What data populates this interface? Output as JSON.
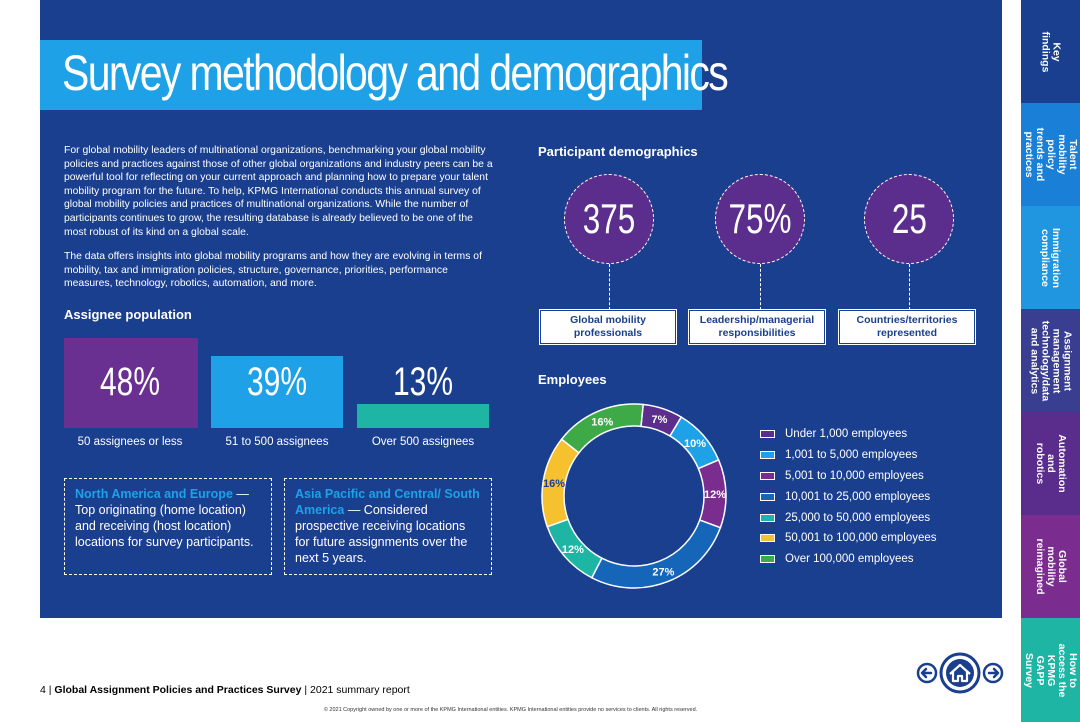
{
  "title": "Survey methodology and demographics",
  "intro": {
    "paragraph1": "For global mobility leaders of multinational organizations, benchmarking your global mobility policies and practices against those of other global organizations and industry peers can be a powerful tool for reflecting on your current approach and planning how to prepare your talent mobility program for the future. To help, KPMG International conducts this annual survey of global mobility policies and practices of multinational organizations. While the number of participants continues to grow, the resulting database is already believed to be one of the most robust of its kind on a global scale.",
    "paragraph2": "The data offers insights into global mobility programs and how they are evolving in terms of mobility, tax and immigration policies, structure, governance, priorities, performance measures, technology, robotics, automation, and more."
  },
  "assignee_population": {
    "heading": "Assignee population",
    "bars": [
      {
        "value": "48%",
        "label": "50 assignees or less",
        "color": "#6a3091"
      },
      {
        "value": "39%",
        "label": "51 to 500 assignees",
        "color": "#1ea1e6"
      },
      {
        "value": "13%",
        "label": "Over 500 assignees",
        "color": "#1fb5a5"
      }
    ]
  },
  "callouts": [
    {
      "highlight": "North America and Europe",
      "text": " — Top originating (home location) and receiving (host location) locations for survey participants."
    },
    {
      "highlight": "Asia Pacific and Central/ South America",
      "text": " — Considered prospective receiving locations for future assignments over the next 5 years."
    }
  ],
  "participant_demographics": {
    "heading": "Participant demographics",
    "items": [
      {
        "value": "375",
        "label": "Global mobility professionals"
      },
      {
        "value": "75%",
        "label": "Leadership/managerial responsibilities"
      },
      {
        "value": "25",
        "label": "Countries/territories represented"
      }
    ]
  },
  "employees": {
    "heading": "Employees"
  },
  "chart_data": {
    "type": "pie",
    "title": "Employees",
    "categories": [
      "Under 1,000 employees",
      "1,001 to 5,000 employees",
      "5,001 to 10,000 employees",
      "10,001 to 25,000 employees",
      "25,000 to 50,000 employees",
      "50,001 to 100,000 employees",
      "Over 100,000 employees"
    ],
    "values": [
      7,
      10,
      12,
      27,
      12,
      16,
      16
    ],
    "labels": [
      "7%",
      "10%",
      "12%",
      "27%",
      "12%",
      "16%",
      "16%"
    ],
    "colors": [
      "#5b2d8c",
      "#1ea1e6",
      "#7b2d8f",
      "#1565b8",
      "#1fb5a5",
      "#f5c12e",
      "#3daa47"
    ],
    "donut": true,
    "legend_position": "right"
  },
  "sidebar": {
    "tabs": [
      {
        "label": "Key findings",
        "color": "#1a3f8f"
      },
      {
        "label": "Talent mobility policy trends and practices",
        "color": "#1a7fd6"
      },
      {
        "label": "Immigration compliance",
        "color": "#2196e0"
      },
      {
        "label": "Assignment management technology/data and analytics",
        "color": "#3a3e90"
      },
      {
        "label": "Automation and robotics",
        "color": "#5a2d8c"
      },
      {
        "label": "Global mobility reimagined",
        "color": "#7b2d8f"
      },
      {
        "label": "How to access the KPMG GAPP Survey",
        "color": "#1fb5a5"
      }
    ]
  },
  "footer": {
    "page": "4",
    "report_title": "Global Assignment Policies and Practices Survey",
    "subtitle": "2021 summary report",
    "copyright": "© 2021 Copyright owned by one or more of the KPMG International entities. KPMG International entities provide no services to clients. All rights reserved."
  },
  "nav": {
    "prev": "previous-page",
    "home": "home",
    "next": "next-page"
  }
}
